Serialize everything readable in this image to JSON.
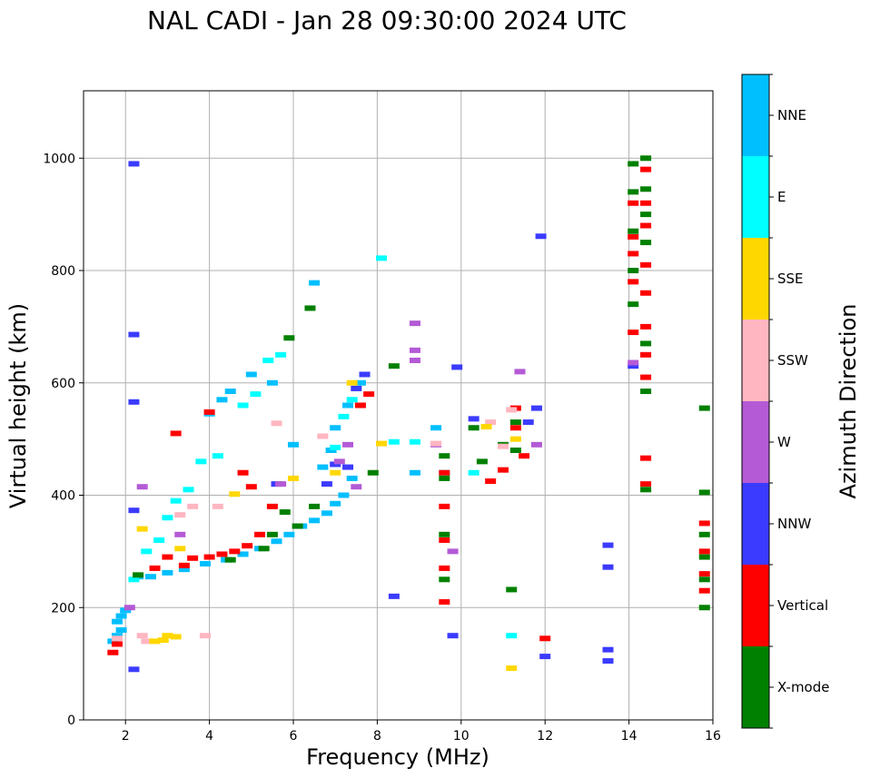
{
  "chart_data": {
    "type": "scatter",
    "title": "NAL CADI - Jan 28 09:30:00 2024 UTC",
    "xlabel": "Frequency (MHz)",
    "ylabel": "Virtual height (km)",
    "xlim": [
      1,
      16
    ],
    "ylim": [
      0,
      1120
    ],
    "xticks": [
      2,
      4,
      6,
      8,
      10,
      12,
      14,
      16
    ],
    "yticks": [
      0,
      200,
      400,
      600,
      800,
      1000
    ],
    "grid": true,
    "colorbar": {
      "label": "Azimuth Direction",
      "categories": [
        {
          "name": "X-mode",
          "color": "#008000"
        },
        {
          "name": "Vertical",
          "color": "#ff0000"
        },
        {
          "name": "NNW",
          "color": "#3b3bff"
        },
        {
          "name": "W",
          "color": "#b45ad6"
        },
        {
          "name": "SSW",
          "color": "#ffb6c1"
        },
        {
          "name": "SSE",
          "color": "#ffd700"
        },
        {
          "name": "E",
          "color": "#00ffff"
        },
        {
          "name": "NNE",
          "color": "#00bfff"
        }
      ]
    },
    "series": [
      {
        "name": "NNE",
        "points": [
          [
            1.7,
            140
          ],
          [
            1.8,
            150
          ],
          [
            1.9,
            160
          ],
          [
            1.8,
            175
          ],
          [
            1.9,
            185
          ],
          [
            2.0,
            195
          ],
          [
            2.3,
            255
          ],
          [
            2.6,
            255
          ],
          [
            3.0,
            262
          ],
          [
            3.4,
            268
          ],
          [
            3.9,
            278
          ],
          [
            4.4,
            285
          ],
          [
            4.8,
            295
          ],
          [
            5.2,
            305
          ],
          [
            5.6,
            318
          ],
          [
            5.9,
            330
          ],
          [
            6.2,
            345
          ],
          [
            6.5,
            355
          ],
          [
            6.8,
            368
          ],
          [
            7.0,
            385
          ],
          [
            7.2,
            400
          ],
          [
            7.4,
            430
          ],
          [
            6.7,
            450
          ],
          [
            6.9,
            480
          ],
          [
            7.0,
            520
          ],
          [
            7.3,
            560
          ],
          [
            7.6,
            600
          ],
          [
            6.5,
            778
          ],
          [
            4.0,
            545
          ],
          [
            4.3,
            570
          ],
          [
            4.5,
            585
          ],
          [
            5.0,
            615
          ],
          [
            5.5,
            600
          ],
          [
            6.0,
            490
          ],
          [
            8.9,
            440
          ],
          [
            9.4,
            520
          ],
          [
            9.6,
            440
          ]
        ]
      },
      {
        "name": "E",
        "points": [
          [
            2.2,
            250
          ],
          [
            2.5,
            300
          ],
          [
            2.8,
            320
          ],
          [
            3.0,
            360
          ],
          [
            3.2,
            390
          ],
          [
            3.5,
            410
          ],
          [
            3.8,
            460
          ],
          [
            4.2,
            470
          ],
          [
            4.8,
            560
          ],
          [
            5.1,
            580
          ],
          [
            5.4,
            640
          ],
          [
            5.7,
            650
          ],
          [
            7.0,
            485
          ],
          [
            7.2,
            540
          ],
          [
            7.4,
            570
          ],
          [
            8.1,
            822
          ],
          [
            8.4,
            495
          ],
          [
            8.9,
            495
          ],
          [
            10.3,
            440
          ],
          [
            11.2,
            150
          ]
        ]
      },
      {
        "name": "Vertical",
        "points": [
          [
            1.7,
            120
          ],
          [
            1.8,
            135
          ],
          [
            2.7,
            270
          ],
          [
            3.0,
            290
          ],
          [
            3.4,
            275
          ],
          [
            3.6,
            288
          ],
          [
            4.0,
            290
          ],
          [
            4.3,
            295
          ],
          [
            4.6,
            300
          ],
          [
            4.9,
            310
          ],
          [
            5.2,
            330
          ],
          [
            3.2,
            510
          ],
          [
            4.0,
            548
          ],
          [
            4.8,
            440
          ],
          [
            5.0,
            415
          ],
          [
            5.5,
            380
          ],
          [
            7.6,
            560
          ],
          [
            7.8,
            580
          ],
          [
            9.6,
            270
          ],
          [
            9.6,
            320
          ],
          [
            9.6,
            380
          ],
          [
            9.6,
            440
          ],
          [
            9.6,
            210
          ],
          [
            10.7,
            425
          ],
          [
            11.0,
            445
          ],
          [
            11.3,
            520
          ],
          [
            11.3,
            555
          ],
          [
            11.5,
            470
          ],
          [
            12.0,
            145
          ],
          [
            14.1,
            690
          ],
          [
            14.1,
            780
          ],
          [
            14.1,
            830
          ],
          [
            14.1,
            860
          ],
          [
            14.1,
            920
          ],
          [
            14.4,
            610
          ],
          [
            14.4,
            650
          ],
          [
            14.4,
            700
          ],
          [
            14.4,
            760
          ],
          [
            14.4,
            810
          ],
          [
            14.4,
            880
          ],
          [
            14.4,
            920
          ],
          [
            14.4,
            980
          ],
          [
            14.4,
            420
          ],
          [
            14.4,
            466
          ],
          [
            15.8,
            350
          ],
          [
            15.8,
            300
          ],
          [
            15.8,
            230
          ],
          [
            15.8,
            260
          ]
        ]
      },
      {
        "name": "X-mode",
        "points": [
          [
            2.3,
            258
          ],
          [
            4.5,
            285
          ],
          [
            5.3,
            305
          ],
          [
            5.5,
            330
          ],
          [
            5.8,
            370
          ],
          [
            6.1,
            345
          ],
          [
            6.5,
            380
          ],
          [
            6.4,
            733
          ],
          [
            5.9,
            680
          ],
          [
            7.9,
            440
          ],
          [
            8.4,
            630
          ],
          [
            9.6,
            430
          ],
          [
            9.6,
            470
          ],
          [
            9.6,
            330
          ],
          [
            9.6,
            250
          ],
          [
            10.3,
            520
          ],
          [
            10.5,
            460
          ],
          [
            11.0,
            490
          ],
          [
            11.3,
            480
          ],
          [
            11.3,
            530
          ],
          [
            11.2,
            232
          ],
          [
            14.1,
            990
          ],
          [
            14.1,
            940
          ],
          [
            14.1,
            870
          ],
          [
            14.1,
            800
          ],
          [
            14.1,
            740
          ],
          [
            14.4,
            1000
          ],
          [
            14.4,
            945
          ],
          [
            14.4,
            900
          ],
          [
            14.4,
            850
          ],
          [
            14.4,
            670
          ],
          [
            14.4,
            585
          ],
          [
            14.4,
            410
          ],
          [
            15.8,
            555
          ],
          [
            15.8,
            405
          ],
          [
            15.8,
            330
          ],
          [
            15.8,
            290
          ],
          [
            15.8,
            250
          ],
          [
            15.8,
            200
          ]
        ]
      },
      {
        "name": "NNW",
        "points": [
          [
            2.2,
            990
          ],
          [
            2.2,
            686
          ],
          [
            2.2,
            566
          ],
          [
            2.2,
            373
          ],
          [
            2.2,
            90
          ],
          [
            5.6,
            420
          ],
          [
            6.8,
            420
          ],
          [
            7.0,
            455
          ],
          [
            7.3,
            450
          ],
          [
            7.5,
            590
          ],
          [
            7.7,
            615
          ],
          [
            8.4,
            220
          ],
          [
            9.8,
            150
          ],
          [
            9.9,
            628
          ],
          [
            10.3,
            536
          ],
          [
            11.6,
            530
          ],
          [
            11.8,
            555
          ],
          [
            11.9,
            861
          ],
          [
            12.0,
            113
          ],
          [
            13.5,
            311
          ],
          [
            13.5,
            272
          ],
          [
            13.5,
            125
          ],
          [
            13.5,
            105
          ],
          [
            14.1,
            630
          ]
        ]
      },
      {
        "name": "W",
        "points": [
          [
            2.1,
            200
          ],
          [
            2.4,
            415
          ],
          [
            3.3,
            330
          ],
          [
            5.7,
            420
          ],
          [
            7.1,
            460
          ],
          [
            7.3,
            490
          ],
          [
            7.5,
            415
          ],
          [
            8.9,
            640
          ],
          [
            8.9,
            658
          ],
          [
            8.9,
            706
          ],
          [
            9.4,
            490
          ],
          [
            9.8,
            300
          ],
          [
            11.4,
            620
          ],
          [
            11.8,
            490
          ],
          [
            14.1,
            636
          ]
        ]
      },
      {
        "name": "SSW",
        "points": [
          [
            1.8,
            145
          ],
          [
            2.4,
            150
          ],
          [
            2.5,
            140
          ],
          [
            3.3,
            365
          ],
          [
            3.6,
            380
          ],
          [
            3.9,
            150
          ],
          [
            4.2,
            380
          ],
          [
            5.6,
            528
          ],
          [
            6.7,
            505
          ],
          [
            9.4,
            492
          ],
          [
            10.7,
            530
          ],
          [
            11.0,
            487
          ],
          [
            11.2,
            552
          ]
        ]
      },
      {
        "name": "SSE",
        "points": [
          [
            2.4,
            340
          ],
          [
            2.7,
            140
          ],
          [
            2.9,
            142
          ],
          [
            3.0,
            150
          ],
          [
            3.2,
            148
          ],
          [
            3.3,
            305
          ],
          [
            4.6,
            402
          ],
          [
            6.0,
            430
          ],
          [
            7.0,
            440
          ],
          [
            7.4,
            600
          ],
          [
            8.1,
            492
          ],
          [
            10.6,
            522
          ],
          [
            11.2,
            92
          ],
          [
            11.3,
            500
          ]
        ]
      }
    ]
  }
}
